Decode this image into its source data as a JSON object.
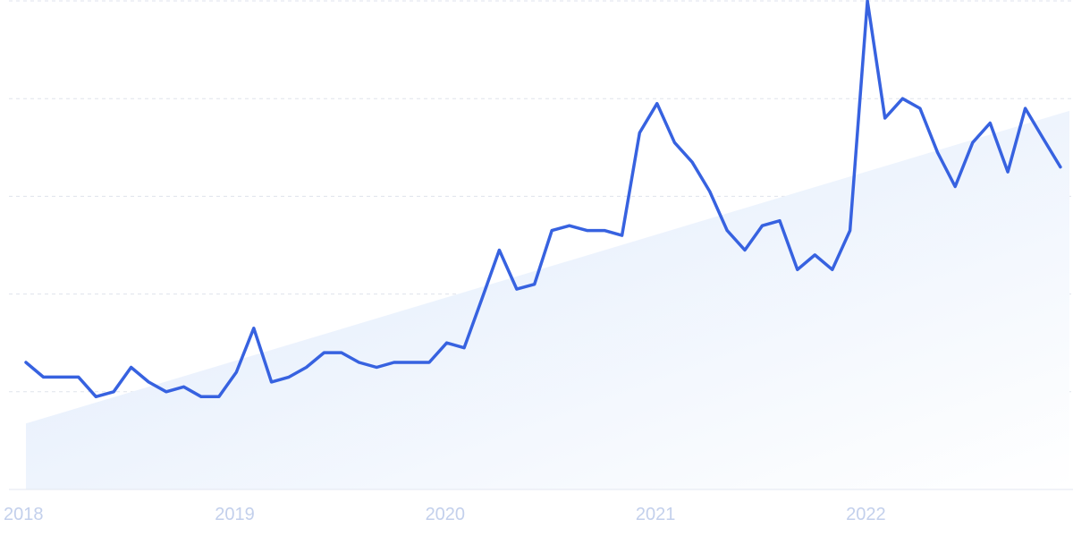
{
  "chart_data": {
    "type": "line",
    "x_tick_labels": [
      "2018",
      "2019",
      "2020",
      "2021",
      "2022"
    ],
    "x_range": [
      2018.0,
      2022.96
    ],
    "ylim": [
      0,
      100
    ],
    "y_gridlines": [
      20,
      40,
      60,
      80,
      100
    ],
    "grid": "horizontal dashed",
    "legend": "none",
    "colors": {
      "line": "#3762e0",
      "trend_fill_top": "#dde9fb",
      "trend_fill_bottom": "#ffffff",
      "tick_text": "#c3d0ec"
    },
    "trend": {
      "x": [
        2018.0,
        2022.96
      ],
      "y": [
        13.5,
        77.5
      ]
    },
    "series": [
      {
        "x": [
          2018.0,
          2018.083,
          2018.167,
          2018.25,
          2018.333,
          2018.417,
          2018.5,
          2018.583,
          2018.667,
          2018.75,
          2018.833,
          2018.917,
          2019.0,
          2019.083,
          2019.167,
          2019.25,
          2019.333,
          2019.417,
          2019.5,
          2019.583,
          2019.667,
          2019.75,
          2019.833,
          2019.917,
          2020.0,
          2020.083,
          2020.167,
          2020.25,
          2020.333,
          2020.417,
          2020.5,
          2020.583,
          2020.667,
          2020.75,
          2020.833,
          2020.917,
          2021.0,
          2021.083,
          2021.167,
          2021.25,
          2021.333,
          2021.417,
          2021.5,
          2021.583,
          2021.667,
          2021.75,
          2021.833,
          2021.917,
          2022.0,
          2022.083,
          2022.167,
          2022.25,
          2022.333,
          2022.417,
          2022.5,
          2022.583,
          2022.667,
          2022.75,
          2022.833,
          2022.917
        ],
        "values": [
          26,
          23,
          23,
          23,
          19,
          20,
          25,
          22,
          20,
          21,
          19,
          19,
          24,
          33,
          22,
          23,
          25,
          28,
          28,
          26,
          25,
          26,
          26,
          26,
          30,
          29,
          39,
          49,
          41,
          42,
          53,
          54,
          53,
          53,
          52,
          73,
          79,
          71,
          67,
          61,
          53,
          49,
          54,
          55,
          45,
          48,
          45,
          53,
          100,
          76,
          80,
          78,
          69,
          62,
          71,
          75,
          65,
          78,
          72,
          66
        ]
      }
    ]
  }
}
